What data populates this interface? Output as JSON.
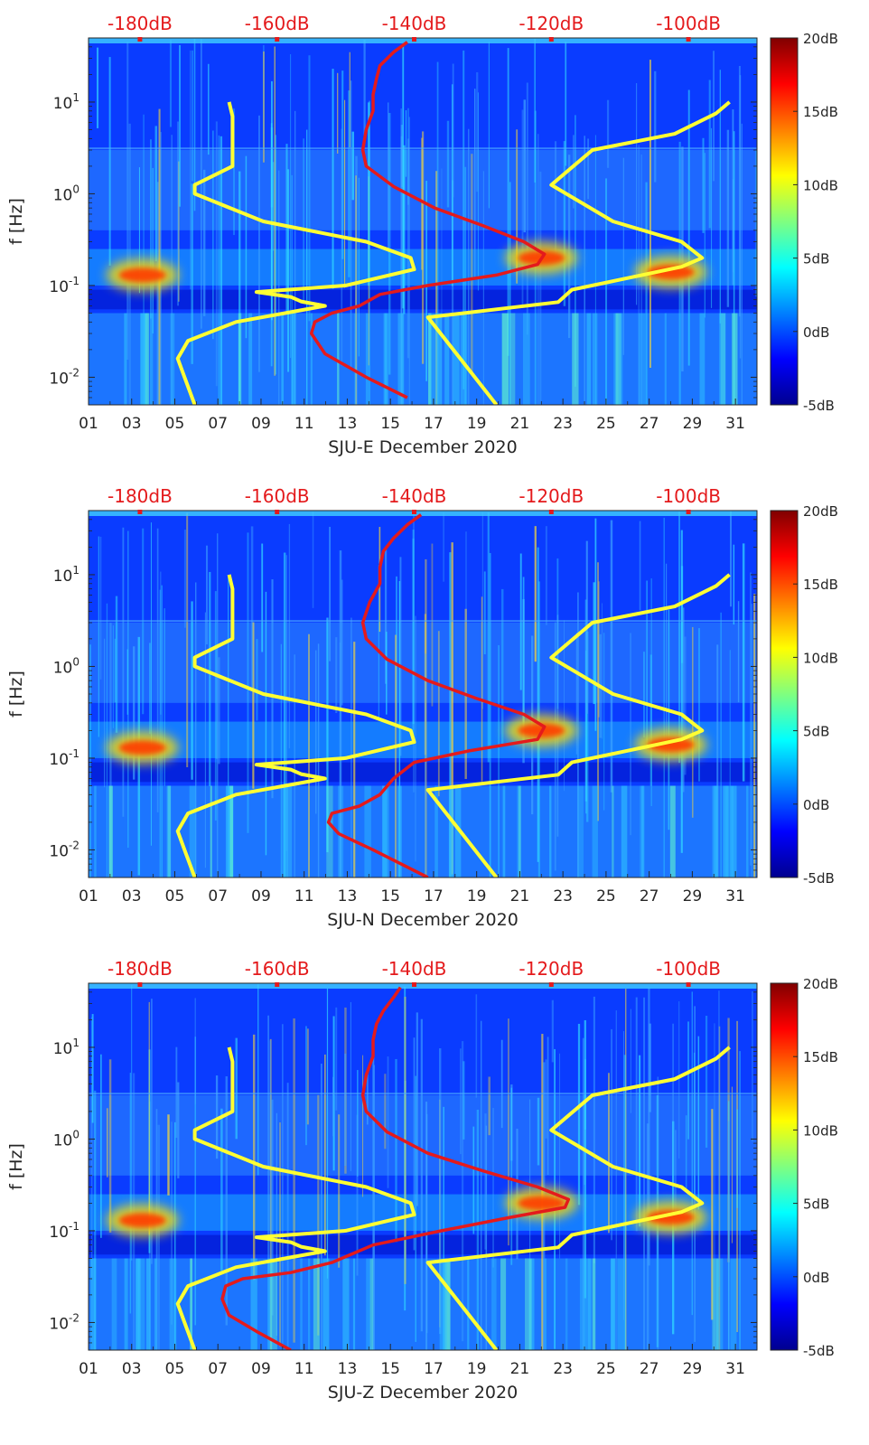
{
  "colors": {
    "noise_model_lines": "#ffff33",
    "median_psd_line": "#e41a1c",
    "top_axis_labels": "#e41a1c",
    "colormap": "jet"
  },
  "chart_data": [
    {
      "type": "heatmap",
      "station": "SJU-E",
      "xlabel": "SJU-E December 2020",
      "ylabel": "f [Hz]",
      "x_ticks": [
        "01",
        "03",
        "05",
        "07",
        "09",
        "11",
        "13",
        "15",
        "17",
        "19",
        "21",
        "23",
        "25",
        "27",
        "29",
        "31"
      ],
      "xlim": [
        1,
        32
      ],
      "y_scale": "log",
      "ylim": [
        0.005,
        50
      ],
      "y_ticks": [
        {
          "base": "10",
          "exp": "-2",
          "value": 0.01
        },
        {
          "base": "10",
          "exp": "-1",
          "value": 0.1
        },
        {
          "base": "10",
          "exp": "0",
          "value": 1
        },
        {
          "base": "10",
          "exp": "1",
          "value": 10
        }
      ],
      "top_axis_ticks": [
        "-180dB",
        "-160dB",
        "-140dB",
        "-120dB",
        "-100dB"
      ],
      "top_axis_range_db": [
        -187.5,
        -90
      ],
      "colorbar_ticks": [
        "20dB",
        "15dB",
        "10dB",
        "5dB",
        "0dB",
        "-5dB"
      ],
      "colorbar_range_db": [
        -5,
        20
      ],
      "microseism_events": [
        {
          "day": 3.5,
          "freq_hz": 0.13
        },
        {
          "day": 28,
          "freq_hz": 0.14
        },
        {
          "day": 22,
          "freq_hz": 0.2
        }
      ],
      "series": [
        {
          "curve": "nhnm",
          "color": "#ffff33",
          "points": [
            [
              -172,
              0.005
            ],
            [
              -173.5,
              0.01
            ],
            [
              -174.5,
              0.016
            ],
            [
              -173,
              0.025
            ],
            [
              -166,
              0.04
            ],
            [
              -153,
              0.06
            ],
            [
              -156.5,
              0.067
            ],
            [
              -158,
              0.075
            ],
            [
              -163,
              0.085
            ],
            [
              -150,
              0.1
            ],
            [
              -140,
              0.15
            ],
            [
              -140.5,
              0.2
            ],
            [
              -147,
              0.3
            ],
            [
              -162,
              0.5
            ],
            [
              -172,
              1
            ],
            [
              -172,
              1.25
            ],
            [
              -166.5,
              2
            ],
            [
              -166.5,
              7
            ],
            [
              -167,
              10
            ]
          ]
        },
        {
          "curve": "nlnm",
          "color": "#ffff33",
          "points": [
            [
              -128,
              0.005
            ],
            [
              -138,
              0.045
            ],
            [
              -119,
              0.066
            ],
            [
              -117,
              0.09
            ],
            [
              -109,
              0.12
            ],
            [
              -101,
              0.16
            ],
            [
              -98,
              0.2
            ],
            [
              -101,
              0.3
            ],
            [
              -111,
              0.5
            ],
            [
              -120,
              1.25
            ],
            [
              -114,
              3
            ],
            [
              -102,
              4.5
            ],
            [
              -96,
              7.5
            ],
            [
              -94,
              10
            ]
          ]
        },
        {
          "curve": "median",
          "color": "#e41a1c",
          "points": [
            [
              -141,
              0.006
            ],
            [
              -147,
              0.01
            ],
            [
              -153,
              0.018
            ],
            [
              -155,
              0.03
            ],
            [
              -154.5,
              0.04
            ],
            [
              -152,
              0.05
            ],
            [
              -148,
              0.06
            ],
            [
              -145,
              0.08
            ],
            [
              -138,
              0.1
            ],
            [
              -128,
              0.13
            ],
            [
              -122,
              0.17
            ],
            [
              -121,
              0.22
            ],
            [
              -124,
              0.3
            ],
            [
              -130,
              0.45
            ],
            [
              -137,
              0.7
            ],
            [
              -143,
              1.2
            ],
            [
              -147,
              2
            ],
            [
              -147.5,
              3
            ],
            [
              -147,
              5
            ],
            [
              -146,
              8
            ],
            [
              -146,
              12
            ],
            [
              -145.5,
              18
            ],
            [
              -145,
              25
            ],
            [
              -143,
              35
            ],
            [
              -141,
              45
            ]
          ]
        }
      ]
    },
    {
      "type": "heatmap",
      "station": "SJU-N",
      "xlabel": "SJU-N December 2020",
      "ylabel": "f [Hz]",
      "x_ticks": [
        "01",
        "03",
        "05",
        "07",
        "09",
        "11",
        "13",
        "15",
        "17",
        "19",
        "21",
        "23",
        "25",
        "27",
        "29",
        "31"
      ],
      "xlim": [
        1,
        32
      ],
      "y_scale": "log",
      "ylim": [
        0.005,
        50
      ],
      "y_ticks": [
        {
          "base": "10",
          "exp": "-2",
          "value": 0.01
        },
        {
          "base": "10",
          "exp": "-1",
          "value": 0.1
        },
        {
          "base": "10",
          "exp": "0",
          "value": 1
        },
        {
          "base": "10",
          "exp": "1",
          "value": 10
        }
      ],
      "top_axis_ticks": [
        "-180dB",
        "-160dB",
        "-140dB",
        "-120dB",
        "-100dB"
      ],
      "top_axis_range_db": [
        -187.5,
        -90
      ],
      "colorbar_ticks": [
        "20dB",
        "15dB",
        "10dB",
        "5dB",
        "0dB",
        "-5dB"
      ],
      "colorbar_range_db": [
        -5,
        20
      ],
      "microseism_events": [
        {
          "day": 3.5,
          "freq_hz": 0.13
        },
        {
          "day": 28,
          "freq_hz": 0.14
        },
        {
          "day": 22,
          "freq_hz": 0.2
        }
      ],
      "series": [
        {
          "curve": "nhnm",
          "color": "#ffff33",
          "points": [
            [
              -172,
              0.005
            ],
            [
              -173.5,
              0.01
            ],
            [
              -174.5,
              0.016
            ],
            [
              -173,
              0.025
            ],
            [
              -166,
              0.04
            ],
            [
              -153,
              0.06
            ],
            [
              -156.5,
              0.067
            ],
            [
              -158,
              0.075
            ],
            [
              -163,
              0.085
            ],
            [
              -150,
              0.1
            ],
            [
              -140,
              0.15
            ],
            [
              -140.5,
              0.2
            ],
            [
              -147,
              0.3
            ],
            [
              -162,
              0.5
            ],
            [
              -172,
              1
            ],
            [
              -172,
              1.25
            ],
            [
              -166.5,
              2
            ],
            [
              -166.5,
              7
            ],
            [
              -167,
              10
            ]
          ]
        },
        {
          "curve": "nlnm",
          "color": "#ffff33",
          "points": [
            [
              -128,
              0.005
            ],
            [
              -138,
              0.045
            ],
            [
              -119,
              0.066
            ],
            [
              -117,
              0.09
            ],
            [
              -109,
              0.12
            ],
            [
              -101,
              0.16
            ],
            [
              -98,
              0.2
            ],
            [
              -101,
              0.3
            ],
            [
              -111,
              0.5
            ],
            [
              -120,
              1.25
            ],
            [
              -114,
              3
            ],
            [
              -102,
              4.5
            ],
            [
              -96,
              7.5
            ],
            [
              -94,
              10
            ]
          ]
        },
        {
          "curve": "median",
          "color": "#e41a1c",
          "points": [
            [
              -138,
              0.005
            ],
            [
              -146,
              0.01
            ],
            [
              -151,
              0.015
            ],
            [
              -152.5,
              0.02
            ],
            [
              -152,
              0.025
            ],
            [
              -148,
              0.03
            ],
            [
              -145,
              0.04
            ],
            [
              -143,
              0.06
            ],
            [
              -140,
              0.09
            ],
            [
              -132,
              0.12
            ],
            [
              -122,
              0.16
            ],
            [
              -121,
              0.22
            ],
            [
              -124,
              0.3
            ],
            [
              -131,
              0.45
            ],
            [
              -138,
              0.7
            ],
            [
              -144,
              1.2
            ],
            [
              -147,
              2
            ],
            [
              -147.5,
              3
            ],
            [
              -146.5,
              5
            ],
            [
              -145,
              8
            ],
            [
              -145,
              12
            ],
            [
              -144.5,
              18
            ],
            [
              -143,
              25
            ],
            [
              -141,
              35
            ],
            [
              -139,
              45
            ]
          ]
        }
      ]
    },
    {
      "type": "heatmap",
      "station": "SJU-Z",
      "xlabel": "SJU-Z December 2020",
      "ylabel": "f [Hz]",
      "x_ticks": [
        "01",
        "03",
        "05",
        "07",
        "09",
        "11",
        "13",
        "15",
        "17",
        "19",
        "21",
        "23",
        "25",
        "27",
        "29",
        "31"
      ],
      "xlim": [
        1,
        32
      ],
      "y_scale": "log",
      "ylim": [
        0.005,
        50
      ],
      "y_ticks": [
        {
          "base": "10",
          "exp": "-2",
          "value": 0.01
        },
        {
          "base": "10",
          "exp": "-1",
          "value": 0.1
        },
        {
          "base": "10",
          "exp": "0",
          "value": 1
        },
        {
          "base": "10",
          "exp": "1",
          "value": 10
        }
      ],
      "top_axis_ticks": [
        "-180dB",
        "-160dB",
        "-140dB",
        "-120dB",
        "-100dB"
      ],
      "top_axis_range_db": [
        -187.5,
        -90
      ],
      "colorbar_ticks": [
        "20dB",
        "15dB",
        "10dB",
        "5dB",
        "0dB",
        "-5dB"
      ],
      "colorbar_range_db": [
        -5,
        20
      ],
      "microseism_events": [
        {
          "day": 3.5,
          "freq_hz": 0.13
        },
        {
          "day": 28,
          "freq_hz": 0.14
        },
        {
          "day": 22,
          "freq_hz": 0.2
        }
      ],
      "series": [
        {
          "curve": "nhnm",
          "color": "#ffff33",
          "points": [
            [
              -172,
              0.005
            ],
            [
              -173.5,
              0.01
            ],
            [
              -174.5,
              0.016
            ],
            [
              -173,
              0.025
            ],
            [
              -166,
              0.04
            ],
            [
              -153,
              0.06
            ],
            [
              -156.5,
              0.067
            ],
            [
              -158,
              0.075
            ],
            [
              -163,
              0.085
            ],
            [
              -150,
              0.1
            ],
            [
              -140,
              0.15
            ],
            [
              -140.5,
              0.2
            ],
            [
              -147,
              0.3
            ],
            [
              -162,
              0.5
            ],
            [
              -172,
              1
            ],
            [
              -172,
              1.25
            ],
            [
              -166.5,
              2
            ],
            [
              -166.5,
              7
            ],
            [
              -167,
              10
            ]
          ]
        },
        {
          "curve": "nlnm",
          "color": "#ffff33",
          "points": [
            [
              -128,
              0.005
            ],
            [
              -138,
              0.045
            ],
            [
              -119,
              0.066
            ],
            [
              -117,
              0.09
            ],
            [
              -109,
              0.12
            ],
            [
              -101,
              0.16
            ],
            [
              -98,
              0.2
            ],
            [
              -101,
              0.3
            ],
            [
              -111,
              0.5
            ],
            [
              -120,
              1.25
            ],
            [
              -114,
              3
            ],
            [
              -102,
              4.5
            ],
            [
              -96,
              7.5
            ],
            [
              -94,
              10
            ]
          ]
        },
        {
          "curve": "median",
          "color": "#e41a1c",
          "points": [
            [
              -158,
              0.005
            ],
            [
              -163,
              0.008
            ],
            [
              -167,
              0.012
            ],
            [
              -168,
              0.018
            ],
            [
              -167.5,
              0.025
            ],
            [
              -165,
              0.03
            ],
            [
              -158,
              0.035
            ],
            [
              -152,
              0.045
            ],
            [
              -146,
              0.07
            ],
            [
              -136,
              0.1
            ],
            [
              -126,
              0.14
            ],
            [
              -118,
              0.18
            ],
            [
              -117.5,
              0.22
            ],
            [
              -122,
              0.3
            ],
            [
              -130,
              0.45
            ],
            [
              -138,
              0.7
            ],
            [
              -144,
              1.2
            ],
            [
              -147,
              2
            ],
            [
              -147.5,
              3
            ],
            [
              -147,
              5
            ],
            [
              -146,
              8
            ],
            [
              -146,
              12
            ],
            [
              -145.5,
              18
            ],
            [
              -144.5,
              25
            ],
            [
              -143,
              35
            ],
            [
              -142,
              45
            ]
          ]
        }
      ]
    }
  ]
}
